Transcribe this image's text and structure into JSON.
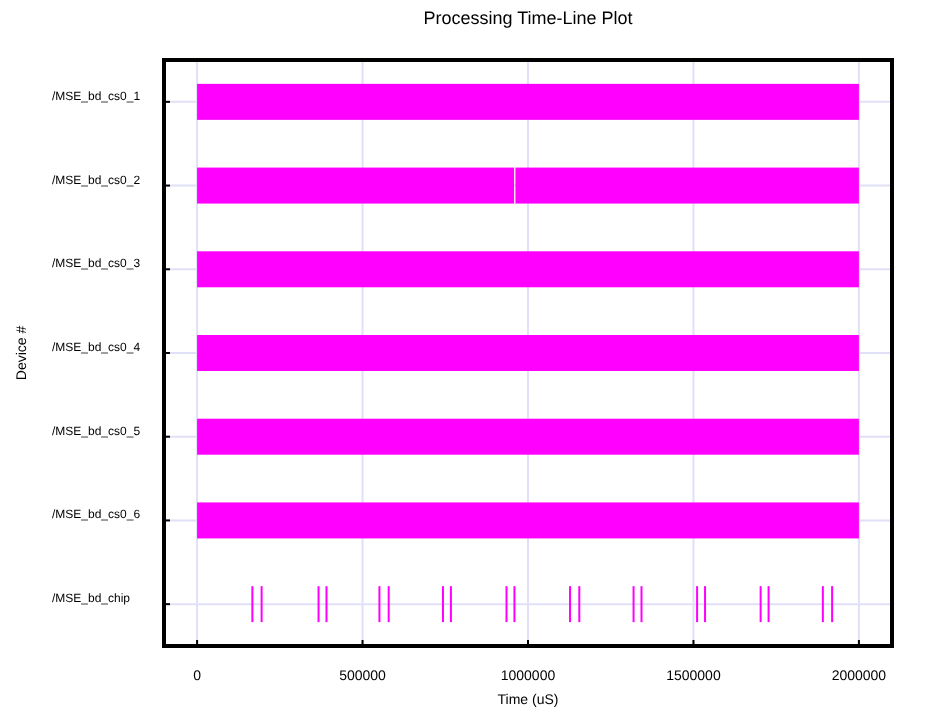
{
  "chart_data": {
    "type": "bar",
    "orientation": "horizontal",
    "title": "Processing Time-Line Plot",
    "xlabel": "Time (uS)",
    "ylabel": "Device #",
    "categories": [
      "/MSE_bd_cs0_1",
      "/MSE_bd_cs0_2",
      "/MSE_bd_cs0_3",
      "/MSE_bd_cs0_4",
      "/MSE_bd_cs0_5",
      "/MSE_bd_cs0_6",
      "/MSE_bd_chip"
    ],
    "xlim": [
      -100000,
      2100000
    ],
    "xticks": [
      0,
      500000,
      1000000,
      1500000,
      2000000
    ],
    "grid": true,
    "series": [
      {
        "color": "#ff00ff",
        "base": [
          0,
          0,
          0,
          0,
          0,
          0,
          null
        ],
        "values": [
          2000000,
          958000,
          2000000,
          2000000,
          2000000,
          2000000,
          null
        ]
      },
      {
        "color": "#ff00ff",
        "base": [
          null,
          962000,
          null,
          null,
          null,
          null,
          null
        ],
        "values": [
          null,
          1038000,
          null,
          null,
          null,
          null,
          null
        ]
      },
      {
        "color": "#ff00ff",
        "base": [
          null,
          null,
          null,
          null,
          null,
          null,
          164000
        ],
        "values": [
          null,
          null,
          null,
          null,
          null,
          null,
          6000
        ]
      },
      {
        "color": "#ff00ff",
        "base": [
          null,
          null,
          null,
          null,
          null,
          null,
          192000
        ],
        "values": [
          null,
          null,
          null,
          null,
          null,
          null,
          6000
        ]
      },
      {
        "color": "#ff00ff",
        "base": [
          null,
          null,
          null,
          null,
          null,
          null,
          364000
        ],
        "values": [
          null,
          null,
          null,
          null,
          null,
          null,
          6000
        ]
      },
      {
        "color": "#ff00ff",
        "base": [
          null,
          null,
          null,
          null,
          null,
          null,
          388000
        ],
        "values": [
          null,
          null,
          null,
          null,
          null,
          null,
          6000
        ]
      },
      {
        "color": "#ff00ff",
        "base": [
          null,
          null,
          null,
          null,
          null,
          null,
          548000
        ],
        "values": [
          null,
          null,
          null,
          null,
          null,
          null,
          6000
        ]
      },
      {
        "color": "#ff00ff",
        "base": [
          null,
          null,
          null,
          null,
          null,
          null,
          576000
        ],
        "values": [
          null,
          null,
          null,
          null,
          null,
          null,
          6000
        ]
      },
      {
        "color": "#ff00ff",
        "base": [
          null,
          null,
          null,
          null,
          null,
          null,
          740000
        ],
        "values": [
          null,
          null,
          null,
          null,
          null,
          null,
          6000
        ]
      },
      {
        "color": "#ff00ff",
        "base": [
          null,
          null,
          null,
          null,
          null,
          null,
          764000
        ],
        "values": [
          null,
          null,
          null,
          null,
          null,
          null,
          6000
        ]
      },
      {
        "color": "#ff00ff",
        "base": [
          null,
          null,
          null,
          null,
          null,
          null,
          932000
        ],
        "values": [
          null,
          null,
          null,
          null,
          null,
          null,
          6000
        ]
      },
      {
        "color": "#ff00ff",
        "base": [
          null,
          null,
          null,
          null,
          null,
          null,
          956000
        ],
        "values": [
          null,
          null,
          null,
          null,
          null,
          null,
          6000
        ]
      },
      {
        "color": "#ff00ff",
        "base": [
          null,
          null,
          null,
          null,
          null,
          null,
          1124000
        ],
        "values": [
          null,
          null,
          null,
          null,
          null,
          null,
          6000
        ]
      },
      {
        "color": "#ff00ff",
        "base": [
          null,
          null,
          null,
          null,
          null,
          null,
          1152000
        ],
        "values": [
          null,
          null,
          null,
          null,
          null,
          null,
          6000
        ]
      },
      {
        "color": "#ff00ff",
        "base": [
          null,
          null,
          null,
          null,
          null,
          null,
          1316000
        ],
        "values": [
          null,
          null,
          null,
          null,
          null,
          null,
          6000
        ]
      },
      {
        "color": "#ff00ff",
        "base": [
          null,
          null,
          null,
          null,
          null,
          null,
          1340000
        ],
        "values": [
          null,
          null,
          null,
          null,
          null,
          null,
          6000
        ]
      },
      {
        "color": "#ff00ff",
        "base": [
          null,
          null,
          null,
          null,
          null,
          null,
          1508000
        ],
        "values": [
          null,
          null,
          null,
          null,
          null,
          null,
          6000
        ]
      },
      {
        "color": "#ff00ff",
        "base": [
          null,
          null,
          null,
          null,
          null,
          null,
          1532000
        ],
        "values": [
          null,
          null,
          null,
          null,
          null,
          null,
          6000
        ]
      },
      {
        "color": "#ff00ff",
        "base": [
          null,
          null,
          null,
          null,
          null,
          null,
          1700000
        ],
        "values": [
          null,
          null,
          null,
          null,
          null,
          null,
          6000
        ]
      },
      {
        "color": "#ff00ff",
        "base": [
          null,
          null,
          null,
          null,
          null,
          null,
          1724000
        ],
        "values": [
          null,
          null,
          null,
          null,
          null,
          null,
          6000
        ]
      },
      {
        "color": "#ff00ff",
        "base": [
          null,
          null,
          null,
          null,
          null,
          null,
          1888000
        ],
        "values": [
          null,
          null,
          null,
          null,
          null,
          null,
          6000
        ]
      },
      {
        "color": "#ff00ff",
        "base": [
          null,
          null,
          null,
          null,
          null,
          null,
          1916000
        ],
        "values": [
          null,
          null,
          null,
          null,
          null,
          null,
          6000
        ]
      }
    ]
  }
}
